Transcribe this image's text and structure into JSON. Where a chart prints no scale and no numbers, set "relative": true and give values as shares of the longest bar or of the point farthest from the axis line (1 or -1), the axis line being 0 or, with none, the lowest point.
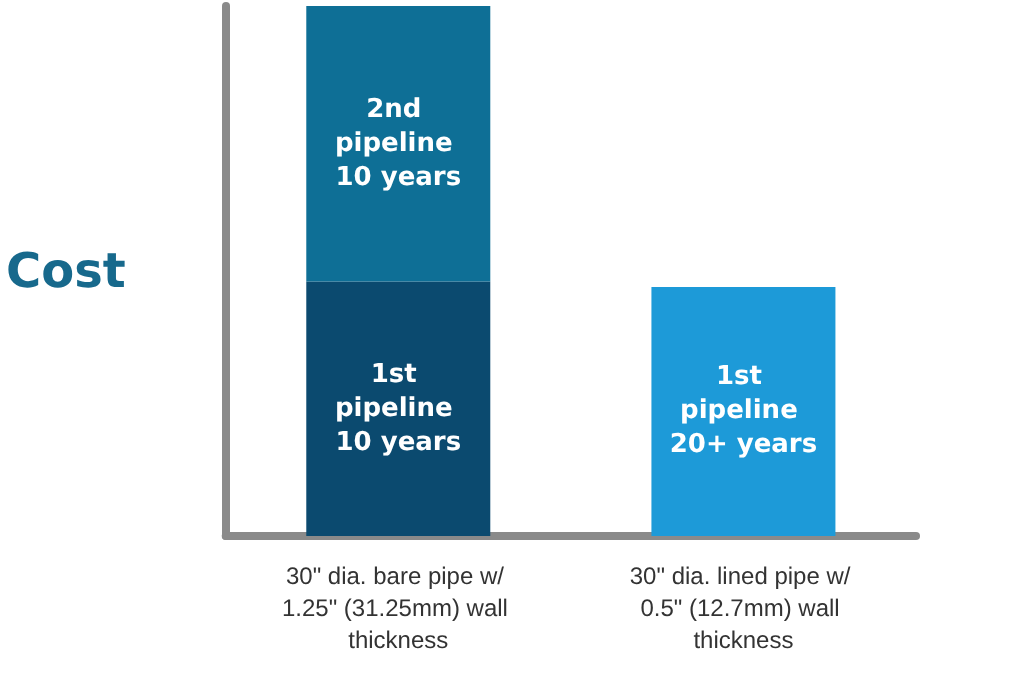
{
  "chart_data": {
    "type": "bar",
    "relative": true,
    "stacked": true,
    "ylabel": "Cost",
    "categories": [
      "30\" dia. bare pipe w/ 1.25\" (31.25mm) wall thickness",
      "30\" dia. lined pipe w/ 0.5\" (12.7mm) wall thickness"
    ],
    "series": [
      {
        "name": "1st pipeline 10 years",
        "color": "#0b4a6f",
        "values": [
          0.48,
          null
        ]
      },
      {
        "name": "2nd pipeline 10 years",
        "color": "#0e6f96",
        "values": [
          0.52,
          null
        ]
      },
      {
        "name": "1st pipeline 20+ years",
        "color": "#1d9ad8",
        "values": [
          null,
          0.47
        ]
      }
    ],
    "legend": false
  }
}
